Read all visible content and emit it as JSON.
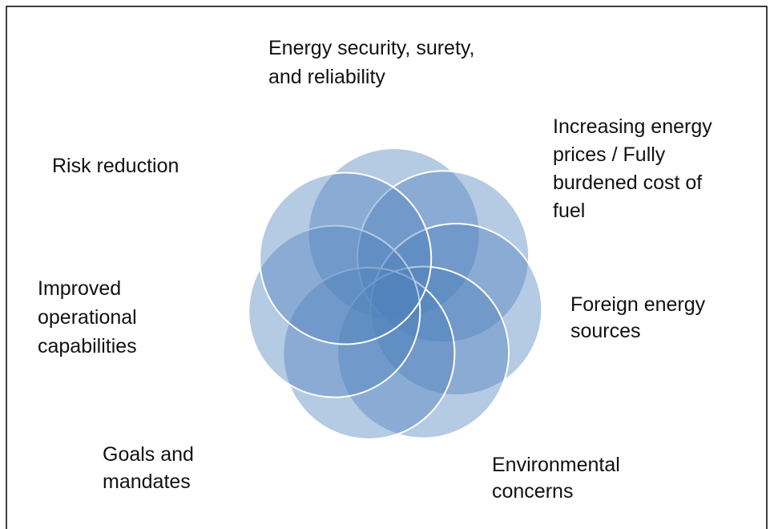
{
  "labels": [
    [
      "Energy security, surety,",
      "and reliability"
    ],
    [
      "Increasing energy",
      "prices / Fully",
      "burdened cost of",
      "fuel"
    ],
    [
      "Foreign energy",
      "sources"
    ],
    [
      "Environmental",
      "concerns"
    ],
    [
      "Goals and",
      "mandates"
    ],
    [
      "Improved",
      "operational",
      "capabilities"
    ],
    [
      "Risk reduction"
    ]
  ]
}
